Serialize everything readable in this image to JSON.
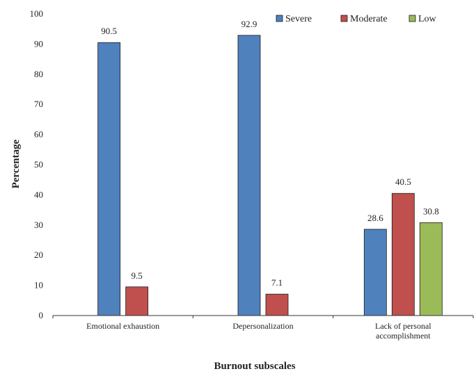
{
  "chart_data": {
    "type": "bar",
    "xlabel": "Burnout subscales",
    "ylabel": "Percentage",
    "ylim": [
      0,
      100
    ],
    "yticks": [
      0,
      10,
      20,
      30,
      40,
      50,
      60,
      70,
      80,
      90,
      100
    ],
    "grid": false,
    "legend_position": "top-right",
    "categories": [
      [
        "Emotional exhaustion"
      ],
      [
        "Depersonalization"
      ],
      [
        "Lack of personal",
        "accomplishment"
      ]
    ],
    "series": [
      {
        "name": "Severe",
        "color": "#4F81BD",
        "values": [
          90.5,
          92.9,
          28.6
        ],
        "labels": [
          "90.5",
          "92.9",
          "28.6"
        ]
      },
      {
        "name": "Moderate",
        "color": "#C0504D",
        "values": [
          9.5,
          7.1,
          40.5
        ],
        "labels": [
          "9.5",
          "7.1",
          "40.5"
        ]
      },
      {
        "name": "Low",
        "color": "#9BBB59",
        "values": [
          null,
          null,
          30.8
        ],
        "labels": [
          null,
          null,
          "30.8"
        ]
      }
    ]
  }
}
